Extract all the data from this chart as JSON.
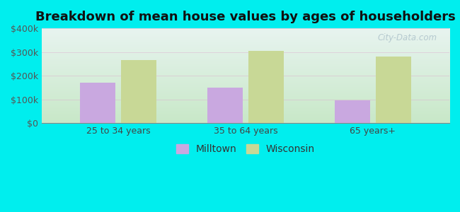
{
  "title": "Breakdown of mean house values by ages of householders",
  "categories": [
    "25 to 34 years",
    "35 to 64 years",
    "65 years+"
  ],
  "milltown_values": [
    170000,
    150000,
    95000
  ],
  "wisconsin_values": [
    265000,
    305000,
    280000
  ],
  "milltown_color": "#c9a8e0",
  "wisconsin_color": "#c8d896",
  "ylim": [
    0,
    400000
  ],
  "yticks": [
    0,
    100000,
    200000,
    300000,
    400000
  ],
  "ytick_labels": [
    "$0",
    "$100k",
    "$200k",
    "$300k",
    "$400k"
  ],
  "background_color": "#00eeee",
  "bar_width": 0.28,
  "legend_labels": [
    "Milltown",
    "Wisconsin"
  ],
  "watermark": "City-Data.com",
  "title_fontsize": 13,
  "tick_fontsize": 9,
  "legend_fontsize": 10
}
